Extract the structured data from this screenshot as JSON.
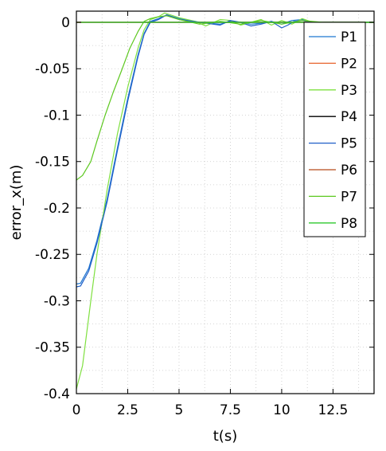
{
  "chart_data": {
    "type": "line",
    "title": "",
    "xlabel": "t(s)",
    "ylabel": "error_x(m)",
    "xlim": [
      0,
      14.5
    ],
    "ylim": [
      -0.4,
      0.012
    ],
    "xticks": [
      0,
      2.5,
      5,
      7.5,
      10,
      12.5
    ],
    "xtick_labels": [
      "0",
      "2.5",
      "5",
      "7.5",
      "10",
      "12.5"
    ],
    "yticks": [
      0,
      -0.05,
      -0.1,
      -0.15,
      -0.2,
      -0.25,
      -0.3,
      -0.35,
      -0.4
    ],
    "ytick_labels": [
      "0",
      "-0.05",
      "-0.1",
      "-0.15",
      "-0.2",
      "-0.25",
      "-0.3",
      "-0.35",
      "-0.4"
    ],
    "grid": true,
    "legend_position": "top-right",
    "series": [
      {
        "name": "P1",
        "color": "#1f77d0",
        "x": [
          0,
          0.2,
          0.6,
          1.0,
          1.5,
          2.0,
          2.5,
          3.0,
          3.3,
          3.6,
          4.0,
          4.4,
          5.0,
          6.0,
          7.0,
          7.5,
          8.0,
          8.5,
          9.0,
          9.5,
          10.0,
          10.5,
          11.0,
          11.5,
          12.0,
          13.0,
          14.5
        ],
        "y": [
          -0.282,
          -0.281,
          -0.265,
          -0.235,
          -0.19,
          -0.135,
          -0.082,
          -0.035,
          -0.012,
          0.001,
          0.004,
          0.008,
          0.004,
          0.0,
          -0.002,
          0.001,
          0.0,
          -0.002,
          -0.001,
          0.001,
          -0.002,
          0.002,
          0.003,
          0.0,
          0.0,
          0.0,
          0.0
        ]
      },
      {
        "name": "P2",
        "color": "#e8642c",
        "x": [
          0,
          0.5,
          1.0,
          2.0,
          3.0,
          4.0,
          6.0,
          8.0,
          10.0,
          12.0,
          14.5
        ],
        "y": [
          0.0,
          0.0,
          0.0,
          0.0,
          0.0,
          0.0,
          0.0,
          0.0,
          0.0,
          0.0,
          0.0
        ]
      },
      {
        "name": "P3",
        "color": "#7fe040",
        "x": [
          0,
          0.3,
          0.7,
          1.0,
          1.5,
          2.0,
          2.5,
          3.0,
          3.3,
          3.6,
          4.0,
          4.3,
          5.0,
          5.8,
          6.3,
          7.0,
          7.5,
          8.0,
          8.5,
          9.0,
          9.5,
          10.0,
          10.5,
          11.0,
          11.5,
          12.0,
          13.0,
          14.5
        ],
        "y": [
          -0.395,
          -0.37,
          -0.3,
          -0.25,
          -0.18,
          -0.12,
          -0.07,
          -0.028,
          -0.008,
          0.003,
          0.006,
          0.01,
          0.005,
          0.001,
          -0.004,
          0.003,
          0.002,
          -0.003,
          0.0,
          0.003,
          -0.003,
          0.002,
          -0.002,
          0.004,
          0.0,
          0.0,
          0.0,
          0.0
        ]
      },
      {
        "name": "P4",
        "color": "#000000",
        "x": [
          0,
          2.0,
          4.0,
          6.0,
          8.0,
          10.0,
          12.0,
          14.5
        ],
        "y": [
          0.0,
          0.0,
          0.0,
          0.0,
          0.0,
          0.0,
          0.0,
          0.0
        ]
      },
      {
        "name": "P5",
        "color": "#1f5fc8",
        "x": [
          0,
          0.2,
          0.6,
          1.0,
          1.5,
          2.0,
          2.5,
          3.0,
          3.3,
          3.6,
          4.0,
          4.4,
          5.0,
          6.0,
          7.0,
          7.5,
          8.0,
          8.5,
          9.0,
          9.5,
          10.0,
          10.3,
          10.6,
          11.0,
          11.5,
          12.0,
          13.0,
          14.5
        ],
        "y": [
          -0.285,
          -0.284,
          -0.268,
          -0.238,
          -0.193,
          -0.138,
          -0.085,
          -0.037,
          -0.013,
          0.0,
          0.003,
          0.008,
          0.003,
          0.0,
          -0.003,
          0.002,
          0.0,
          -0.004,
          -0.002,
          0.001,
          -0.006,
          -0.003,
          0.001,
          0.002,
          0.0,
          0.0,
          0.0,
          0.0
        ]
      },
      {
        "name": "P6",
        "color": "#b84a1a",
        "x": [
          0,
          2.0,
          4.0,
          6.0,
          8.0,
          10.0,
          12.0,
          14.5
        ],
        "y": [
          0.0,
          0.0,
          0.0,
          0.0,
          0.0,
          0.0,
          0.0,
          0.0
        ]
      },
      {
        "name": "P7",
        "color": "#5cc81f",
        "x": [
          0,
          0.3,
          0.7,
          1.0,
          1.4,
          1.8,
          2.2,
          2.6,
          3.0,
          3.3,
          3.6,
          4.0,
          4.4,
          5.0,
          6.0,
          7.0,
          8.0,
          9.0,
          10.0,
          11.0,
          12.0,
          13.0,
          14.5
        ],
        "y": [
          -0.17,
          -0.165,
          -0.15,
          -0.128,
          -0.1,
          -0.075,
          -0.052,
          -0.028,
          -0.01,
          0.001,
          0.004,
          0.006,
          0.007,
          0.003,
          -0.002,
          0.001,
          -0.002,
          0.002,
          -0.002,
          0.002,
          0.0,
          0.0,
          0.0
        ]
      },
      {
        "name": "P8",
        "color": "#2ec82e",
        "x": [
          0,
          2.0,
          4.0,
          6.0,
          8.0,
          10.0,
          12.0,
          14.5
        ],
        "y": [
          0.0,
          0.0,
          0.0,
          0.0,
          0.0,
          0.0,
          0.0,
          0.0
        ]
      }
    ]
  }
}
